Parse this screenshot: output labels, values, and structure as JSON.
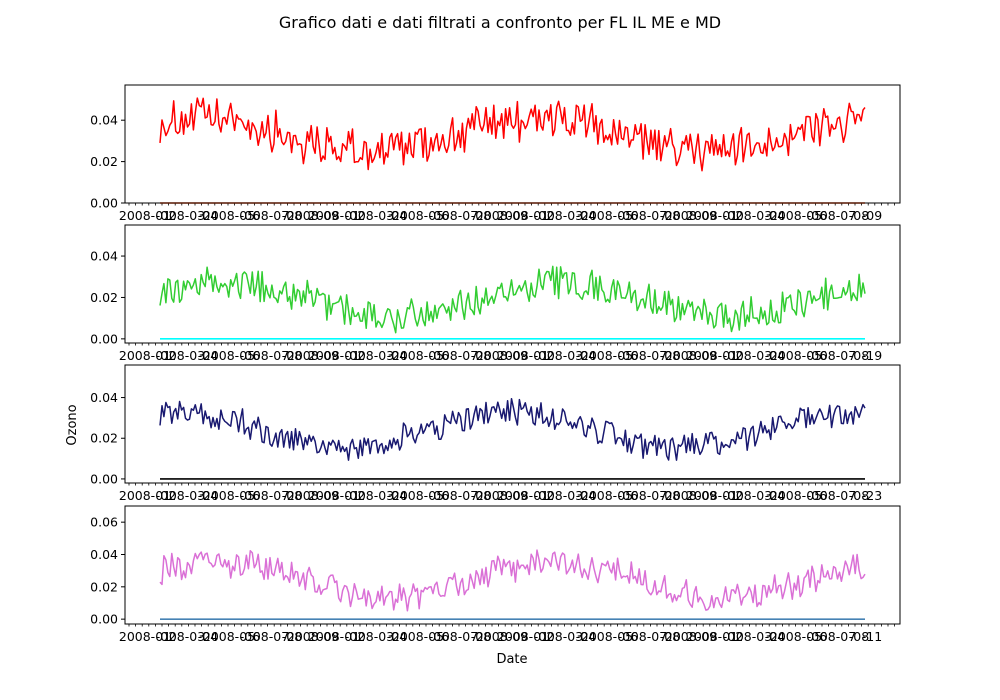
{
  "figure": {
    "title": "Grafico dati e dati filtrati a confronto per FL IL ME e MD",
    "xlabel": "Date",
    "ylabel": "Ozono"
  },
  "chart_data": [
    {
      "type": "line",
      "x_range": [
        "2008-01-01",
        "2008-10-05"
      ],
      "x_tick_labels": "overlapping dense date labels (illegible), ending with -09",
      "last_tick_suffix": "-09",
      "ylim": [
        0.0,
        0.057
      ],
      "yticks": [
        0.0,
        0.02,
        0.04
      ],
      "ytick_labels": [
        "0.00",
        "0.02",
        "0.04"
      ],
      "series": [
        {
          "color": "#ff0000",
          "baseline": 0.033,
          "amplitude": 0.008,
          "noise": 0.009,
          "peak_phase": 0.12,
          "min": 0.007,
          "max": 0.056
        },
        {
          "color": "#ff4500",
          "constant": 0.0
        }
      ]
    },
    {
      "type": "line",
      "x_range": [
        "2008-01-01",
        "2008-10-19"
      ],
      "x_tick_labels": "overlapping dense date labels (illegible), ending with -19",
      "last_tick_suffix": "-19",
      "ylim": [
        -0.002,
        0.055
      ],
      "yticks": [
        0.0,
        0.02,
        0.04
      ],
      "ytick_labels": [
        "0.00",
        "0.02",
        "0.04"
      ],
      "series": [
        {
          "color": "#32cd32",
          "baseline": 0.019,
          "amplitude": 0.008,
          "noise": 0.007,
          "peak_phase": 0.2,
          "min": 0.001,
          "max": 0.054
        },
        {
          "color": "#00ffff",
          "constant": 0.0
        }
      ]
    },
    {
      "type": "line",
      "x_range": [
        "2008-01-01",
        "2008-11-23"
      ],
      "x_tick_labels": "overlapping dense date labels (illegible), ending with -23",
      "last_tick_suffix": "-23",
      "ylim": [
        -0.002,
        0.056
      ],
      "yticks": [
        0.0,
        0.02,
        0.04
      ],
      "ytick_labels": [
        "0.00",
        "0.02",
        "0.04"
      ],
      "series": [
        {
          "color": "#191970",
          "baseline": 0.024,
          "amplitude": 0.009,
          "noise": 0.006,
          "peak_phase": 0.05,
          "min": 0.004,
          "max": 0.055
        },
        {
          "color": "#000000",
          "constant": 0.0
        }
      ]
    },
    {
      "type": "line",
      "x_range": [
        "2008-01-01",
        "2008-07-11"
      ],
      "x_tick_labels": "overlapping dense date labels (illegible), ending with -11",
      "last_tick_suffix": "-11",
      "ylim": [
        -0.003,
        0.07
      ],
      "yticks": [
        0.0,
        0.02,
        0.04,
        0.06
      ],
      "ytick_labels": [
        "0.00",
        "0.02",
        "0.04",
        "0.06"
      ],
      "series": [
        {
          "color": "#da70d6",
          "baseline": 0.024,
          "amplitude": 0.011,
          "noise": 0.008,
          "peak_phase": 0.18,
          "min": 0.002,
          "max": 0.067
        },
        {
          "color": "#4682b4",
          "constant": 0.0
        }
      ]
    }
  ]
}
